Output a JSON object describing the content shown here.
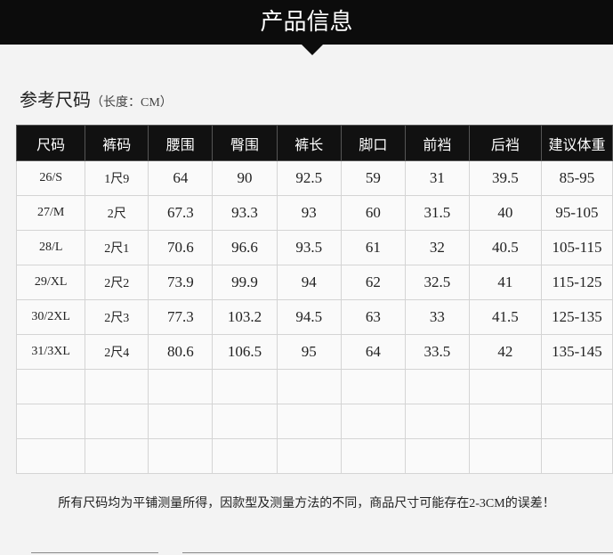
{
  "header": {
    "title": "产品信息"
  },
  "section": {
    "title": "参考尺码",
    "unit": "（长度：CM）"
  },
  "table": {
    "columns": [
      "尺码",
      "裤码",
      "腰围",
      "臀围",
      "裤长",
      "脚口",
      "前裆",
      "后裆",
      "建议体重"
    ],
    "rows": [
      [
        "26/S",
        "1尺9",
        "64",
        "90",
        "92.5",
        "59",
        "31",
        "39.5",
        "85-95"
      ],
      [
        "27/M",
        "2尺",
        "67.3",
        "93.3",
        "93",
        "60",
        "31.5",
        "40",
        "95-105"
      ],
      [
        "28/L",
        "2尺1",
        "70.6",
        "96.6",
        "93.5",
        "61",
        "32",
        "40.5",
        "105-115"
      ],
      [
        "29/XL",
        "2尺2",
        "73.9",
        "99.9",
        "94",
        "62",
        "32.5",
        "41",
        "115-125"
      ],
      [
        "30/2XL",
        "2尺3",
        "77.3",
        "103.2",
        "94.5",
        "63",
        "33",
        "41.5",
        "125-135"
      ],
      [
        "31/3XL",
        "2尺4",
        "80.6",
        "106.5",
        "95",
        "64",
        "33.5",
        "42",
        "135-145"
      ]
    ]
  },
  "note": "所有尺码均为平铺测量所得，因款型及测量方法的不同，商品尺寸可能存在2-3CM的误差！"
}
